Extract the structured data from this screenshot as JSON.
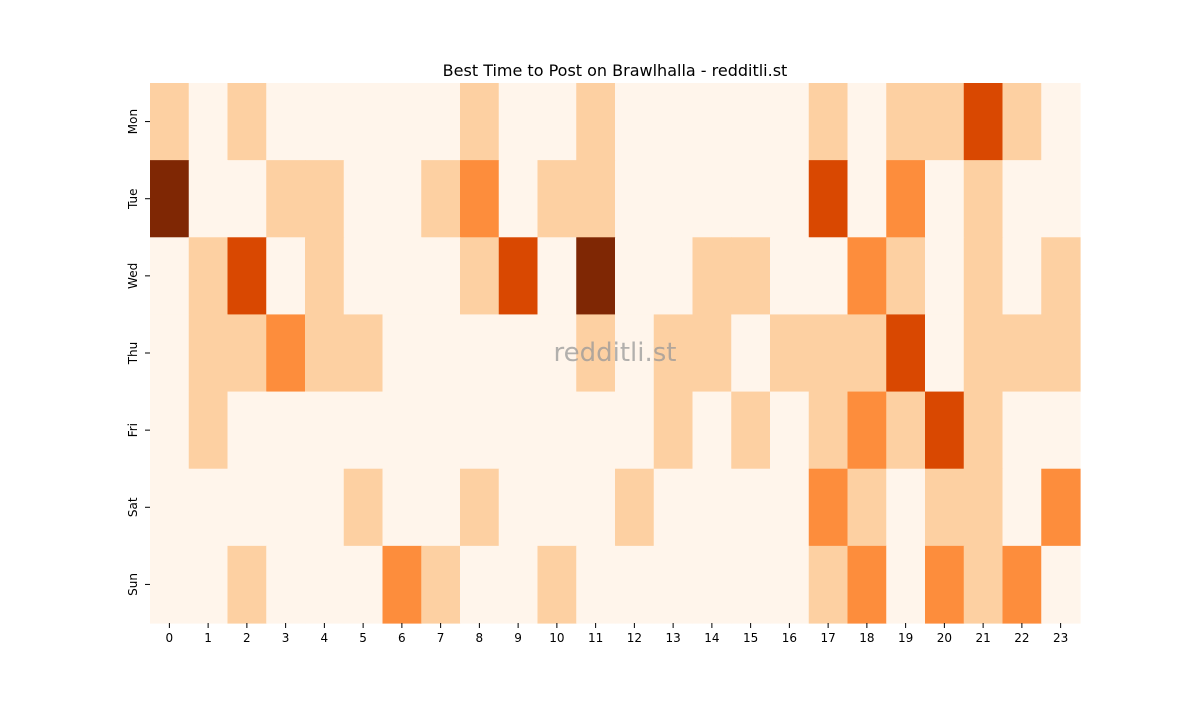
{
  "chart_data": {
    "type": "heatmap",
    "title": "Best Time to Post on Brawlhalla - redditli.st",
    "xlabel": "",
    "ylabel": "",
    "x_categories": [
      "0",
      "1",
      "2",
      "3",
      "4",
      "5",
      "6",
      "7",
      "8",
      "9",
      "10",
      "11",
      "12",
      "13",
      "14",
      "15",
      "16",
      "17",
      "18",
      "19",
      "20",
      "21",
      "22",
      "23"
    ],
    "y_categories": [
      "Mon",
      "Tue",
      "Wed",
      "Thu",
      "Fri",
      "Sat",
      "Sun"
    ],
    "values": [
      [
        1,
        0,
        1,
        0,
        0,
        0,
        0,
        0,
        1,
        0,
        0,
        1,
        0,
        0,
        0,
        0,
        0,
        1,
        0,
        1,
        1,
        3,
        1,
        0
      ],
      [
        4,
        0,
        0,
        1,
        1,
        0,
        0,
        1,
        2,
        0,
        1,
        1,
        0,
        0,
        0,
        0,
        0,
        3,
        0,
        2,
        0,
        1,
        0,
        0
      ],
      [
        0,
        1,
        3,
        0,
        1,
        0,
        0,
        0,
        1,
        3,
        0,
        4,
        0,
        0,
        1,
        1,
        0,
        0,
        2,
        1,
        0,
        1,
        0,
        1
      ],
      [
        0,
        1,
        1,
        2,
        1,
        1,
        0,
        0,
        0,
        0,
        0,
        1,
        0,
        1,
        1,
        0,
        1,
        1,
        1,
        3,
        0,
        1,
        1,
        1
      ],
      [
        0,
        1,
        0,
        0,
        0,
        0,
        0,
        0,
        0,
        0,
        0,
        0,
        0,
        1,
        0,
        1,
        0,
        1,
        2,
        1,
        3,
        1,
        0,
        0
      ],
      [
        0,
        0,
        0,
        0,
        0,
        1,
        0,
        0,
        1,
        0,
        0,
        0,
        1,
        0,
        0,
        0,
        0,
        2,
        1,
        0,
        1,
        1,
        0,
        2
      ],
      [
        0,
        0,
        1,
        0,
        0,
        0,
        2,
        1,
        0,
        0,
        1,
        0,
        0,
        0,
        0,
        0,
        0,
        1,
        2,
        0,
        2,
        1,
        2,
        0
      ]
    ],
    "color_scale": {
      "0": "#fff5eb",
      "1": "#fdd0a2",
      "2": "#fd8d3c",
      "3": "#d94801",
      "4": "#7f2704"
    },
    "colormap": "Oranges",
    "legend": "none",
    "grid": false,
    "watermark": "redditli.st"
  }
}
